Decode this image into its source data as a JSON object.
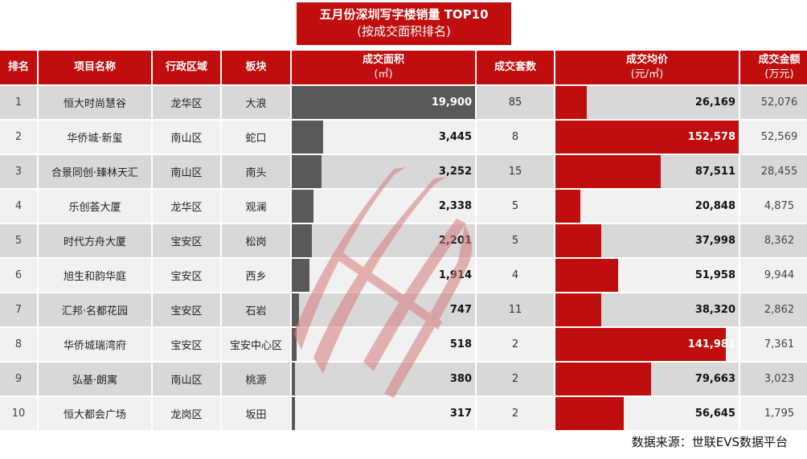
{
  "title": {
    "line1": "五月份深圳写字楼销量 TOP10",
    "line2": "(按成交面积排名)"
  },
  "headers": {
    "rank": "排名",
    "name": "项目名称",
    "district": "行政区域",
    "subarea": "板块",
    "area_l1": "成交面积",
    "area_l2": "(㎡)",
    "units": "成交套数",
    "price_l1": "成交均价",
    "price_l2": "(元/㎡)",
    "amount_l1": "成交金额",
    "amount_l2": "(万元)"
  },
  "rows": [
    {
      "rank": "1",
      "name": "恒大时尚慧谷",
      "district": "龙华区",
      "subarea": "大浪",
      "area": "19,900",
      "units": "85",
      "price": "26,169",
      "amount": "52,076"
    },
    {
      "rank": "2",
      "name": "华侨城·新玺",
      "district": "南山区",
      "subarea": "蛇口",
      "area": "3,445",
      "units": "8",
      "price": "152,578",
      "amount": "52,569"
    },
    {
      "rank": "3",
      "name": "合景同创·臻林天汇",
      "district": "南山区",
      "subarea": "南头",
      "area": "3,252",
      "units": "15",
      "price": "87,511",
      "amount": "28,455"
    },
    {
      "rank": "4",
      "name": "乐创荟大厦",
      "district": "龙华区",
      "subarea": "观澜",
      "area": "2,338",
      "units": "5",
      "price": "20,848",
      "amount": "4,875"
    },
    {
      "rank": "5",
      "name": "时代方舟大厦",
      "district": "宝安区",
      "subarea": "松岗",
      "area": "2,201",
      "units": "5",
      "price": "37,998",
      "amount": "8,362"
    },
    {
      "rank": "6",
      "name": "旭生和韵华庭",
      "district": "宝安区",
      "subarea": "西乡",
      "area": "1,914",
      "units": "4",
      "price": "51,958",
      "amount": "9,944"
    },
    {
      "rank": "7",
      "name": "汇邦·名都花园",
      "district": "宝安区",
      "subarea": "石岩",
      "area": "747",
      "units": "11",
      "price": "38,320",
      "amount": "2,862"
    },
    {
      "rank": "8",
      "name": "华侨城瑞湾府",
      "district": "宝安区",
      "subarea": "宝安中心区",
      "area": "518",
      "units": "2",
      "price": "141,981",
      "amount": "7,361"
    },
    {
      "rank": "9",
      "name": "弘基·朗寓",
      "district": "南山区",
      "subarea": "桃源",
      "area": "380",
      "units": "2",
      "price": "79,663",
      "amount": "3,023"
    },
    {
      "rank": "10",
      "name": "恒大都会广场",
      "district": "龙岗区",
      "subarea": "坂田",
      "area": "317",
      "units": "2",
      "price": "56,645",
      "amount": "1,795"
    }
  ],
  "source": "数据来源：世联EVS数据平台",
  "colors": {
    "header_red": "#c00d0e",
    "area_bar": "#595959",
    "price_bar": "#c00d0e",
    "row_dark": "#d8d8d8",
    "row_light": "#f1f1f1"
  },
  "chart_data": {
    "type": "table",
    "title": "五月份深圳写字楼销量 TOP10 (按成交面积排名)",
    "columns": [
      "排名",
      "项目名称",
      "行政区域",
      "板块",
      "成交面积(㎡)",
      "成交套数",
      "成交均价(元/㎡)",
      "成交金额(万元)"
    ],
    "categories": [
      "恒大时尚慧谷",
      "华侨城·新玺",
      "合景同创·臻林天汇",
      "乐创荟大厦",
      "时代方舟大厦",
      "旭生和韵华庭",
      "汇邦·名都花园",
      "华侨城瑞湾府",
      "弘基·朗寓",
      "恒大都会广场"
    ],
    "series": [
      {
        "name": "成交面积(㎡)",
        "values": [
          19900,
          3445,
          3252,
          2338,
          2201,
          1914,
          747,
          518,
          380,
          317
        ],
        "bar": true,
        "color": "#595959"
      },
      {
        "name": "成交套数",
        "values": [
          85,
          8,
          15,
          5,
          5,
          4,
          11,
          2,
          2,
          2
        ]
      },
      {
        "name": "成交均价(元/㎡)",
        "values": [
          26169,
          152578,
          87511,
          20848,
          37998,
          51958,
          38320,
          141981,
          79663,
          56645
        ],
        "bar": true,
        "color": "#c00d0e"
      },
      {
        "name": "成交金额(万元)",
        "values": [
          52076,
          52569,
          28455,
          4875,
          8362,
          9944,
          2862,
          7361,
          3023,
          1795
        ]
      }
    ],
    "district": [
      "龙华区",
      "南山区",
      "南山区",
      "龙华区",
      "宝安区",
      "宝安区",
      "宝安区",
      "宝安区",
      "南山区",
      "龙岗区"
    ],
    "subarea": [
      "大浪",
      "蛇口",
      "南头",
      "观澜",
      "松岗",
      "西乡",
      "石岩",
      "宝安中心区",
      "桃源",
      "坂田"
    ],
    "annotations": [
      "数据来源：世联EVS数据平台"
    ]
  }
}
